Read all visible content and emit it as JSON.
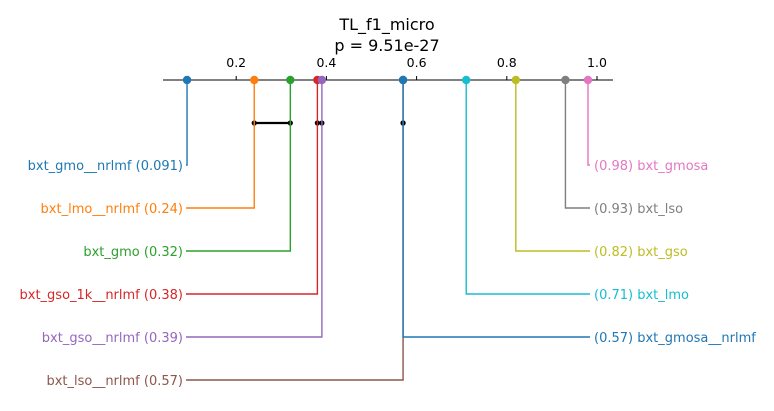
{
  "chart_data": {
    "type": "critical-difference",
    "title": "TL_f1_micro",
    "subtitle": "p = 9.51e-27",
    "axis": {
      "ticks": [
        0.2,
        0.4,
        0.6,
        0.8,
        1.0
      ],
      "tick_labels": [
        "0.2",
        "0.4",
        "0.6",
        "0.8",
        "1.0"
      ]
    },
    "methods": [
      {
        "name": "bxt_gmo__nrlmf",
        "value": 0.091,
        "value_label": "(0.091)",
        "color": "#1f77b4",
        "side": "left"
      },
      {
        "name": "bxt_lmo__nrlmf",
        "value": 0.24,
        "value_label": "(0.24)",
        "color": "#ff7f0e",
        "side": "left"
      },
      {
        "name": "bxt_gmo",
        "value": 0.32,
        "value_label": "(0.32)",
        "color": "#2ca02c",
        "side": "left"
      },
      {
        "name": "bxt_gso_1k__nrlmf",
        "value": 0.38,
        "value_label": "(0.38)",
        "color": "#d62728",
        "side": "left"
      },
      {
        "name": "bxt_gso__nrlmf",
        "value": 0.39,
        "value_label": "(0.39)",
        "color": "#9467bd",
        "side": "left"
      },
      {
        "name": "bxt_lso__nrlmf",
        "value": 0.57,
        "value_label": "(0.57)",
        "color": "#8c564b",
        "side": "left"
      },
      {
        "name": "bxt_gmosa",
        "value": 0.98,
        "value_label": "(0.98)",
        "color": "#e377c2",
        "side": "right"
      },
      {
        "name": "bxt_lso",
        "value": 0.93,
        "value_label": "(0.93)",
        "color": "#7f7f7f",
        "side": "right"
      },
      {
        "name": "bxt_gso",
        "value": 0.82,
        "value_label": "(0.82)",
        "color": "#bcbd22",
        "side": "right"
      },
      {
        "name": "bxt_lmo",
        "value": 0.71,
        "value_label": "(0.71)",
        "color": "#17becf",
        "side": "right"
      },
      {
        "name": "bxt_gmosa__nrlmf",
        "value": 0.57,
        "value_label": "(0.57)",
        "color": "#1f77b4",
        "side": "right"
      }
    ],
    "cliques": [
      [
        0.24,
        0.32
      ],
      [
        0.38,
        0.39
      ],
      [
        0.57,
        0.57
      ]
    ]
  }
}
